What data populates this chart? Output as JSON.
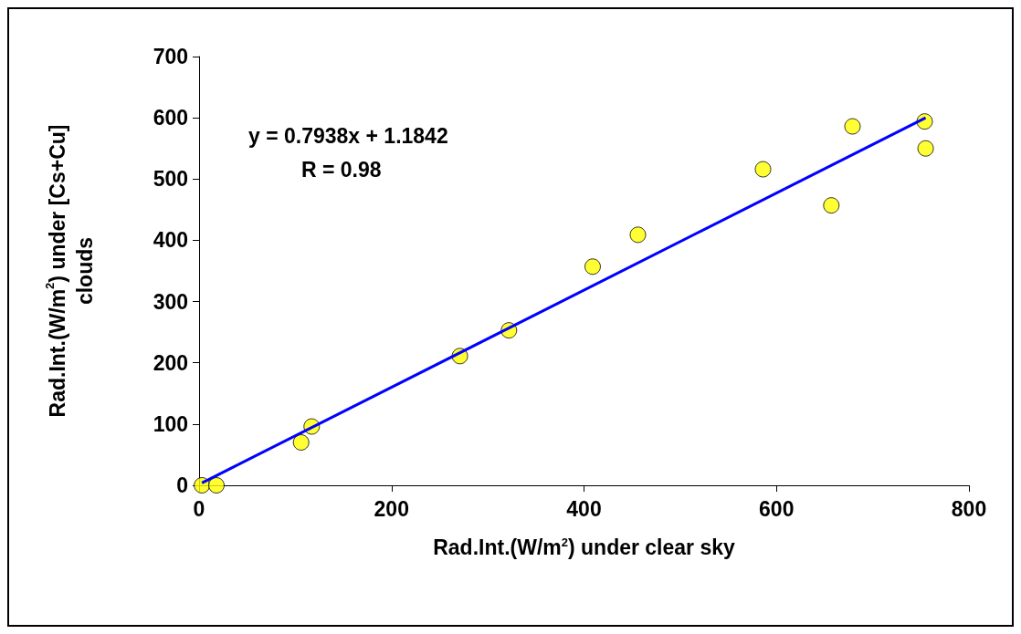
{
  "chart_data": {
    "type": "scatter",
    "xlabel": "Rad.Int.(W/m$^{2}$) under clear sky",
    "ylabel": "Rad.Int.(W/m$^{2}$) under [Cs+Cu] clouds",
    "annotations": [
      "y = 0.7938x + 1.1842",
      "R = 0.98"
    ],
    "xlim": [
      0,
      800
    ],
    "xticks": [
      0,
      200,
      400,
      600,
      800
    ],
    "ylim": [
      0,
      700
    ],
    "yticks": [
      0,
      100,
      200,
      300,
      400,
      500,
      600,
      700
    ],
    "grid": false,
    "series": [
      {
        "color": "#ffff00",
        "marker": "circle",
        "x": [
          3,
          18,
          106,
          117,
          271,
          322,
          409,
          456,
          586,
          657,
          679,
          754,
          755
        ],
        "values": [
          0,
          0,
          70,
          96,
          211,
          253,
          357,
          409,
          516,
          457,
          586,
          594,
          550
        ]
      },
      {
        "type": "line",
        "color": "#0000ff",
        "marker": "none",
        "x": [
          3,
          755
        ],
        "values": [
          4,
          600
        ]
      }
    ]
  }
}
